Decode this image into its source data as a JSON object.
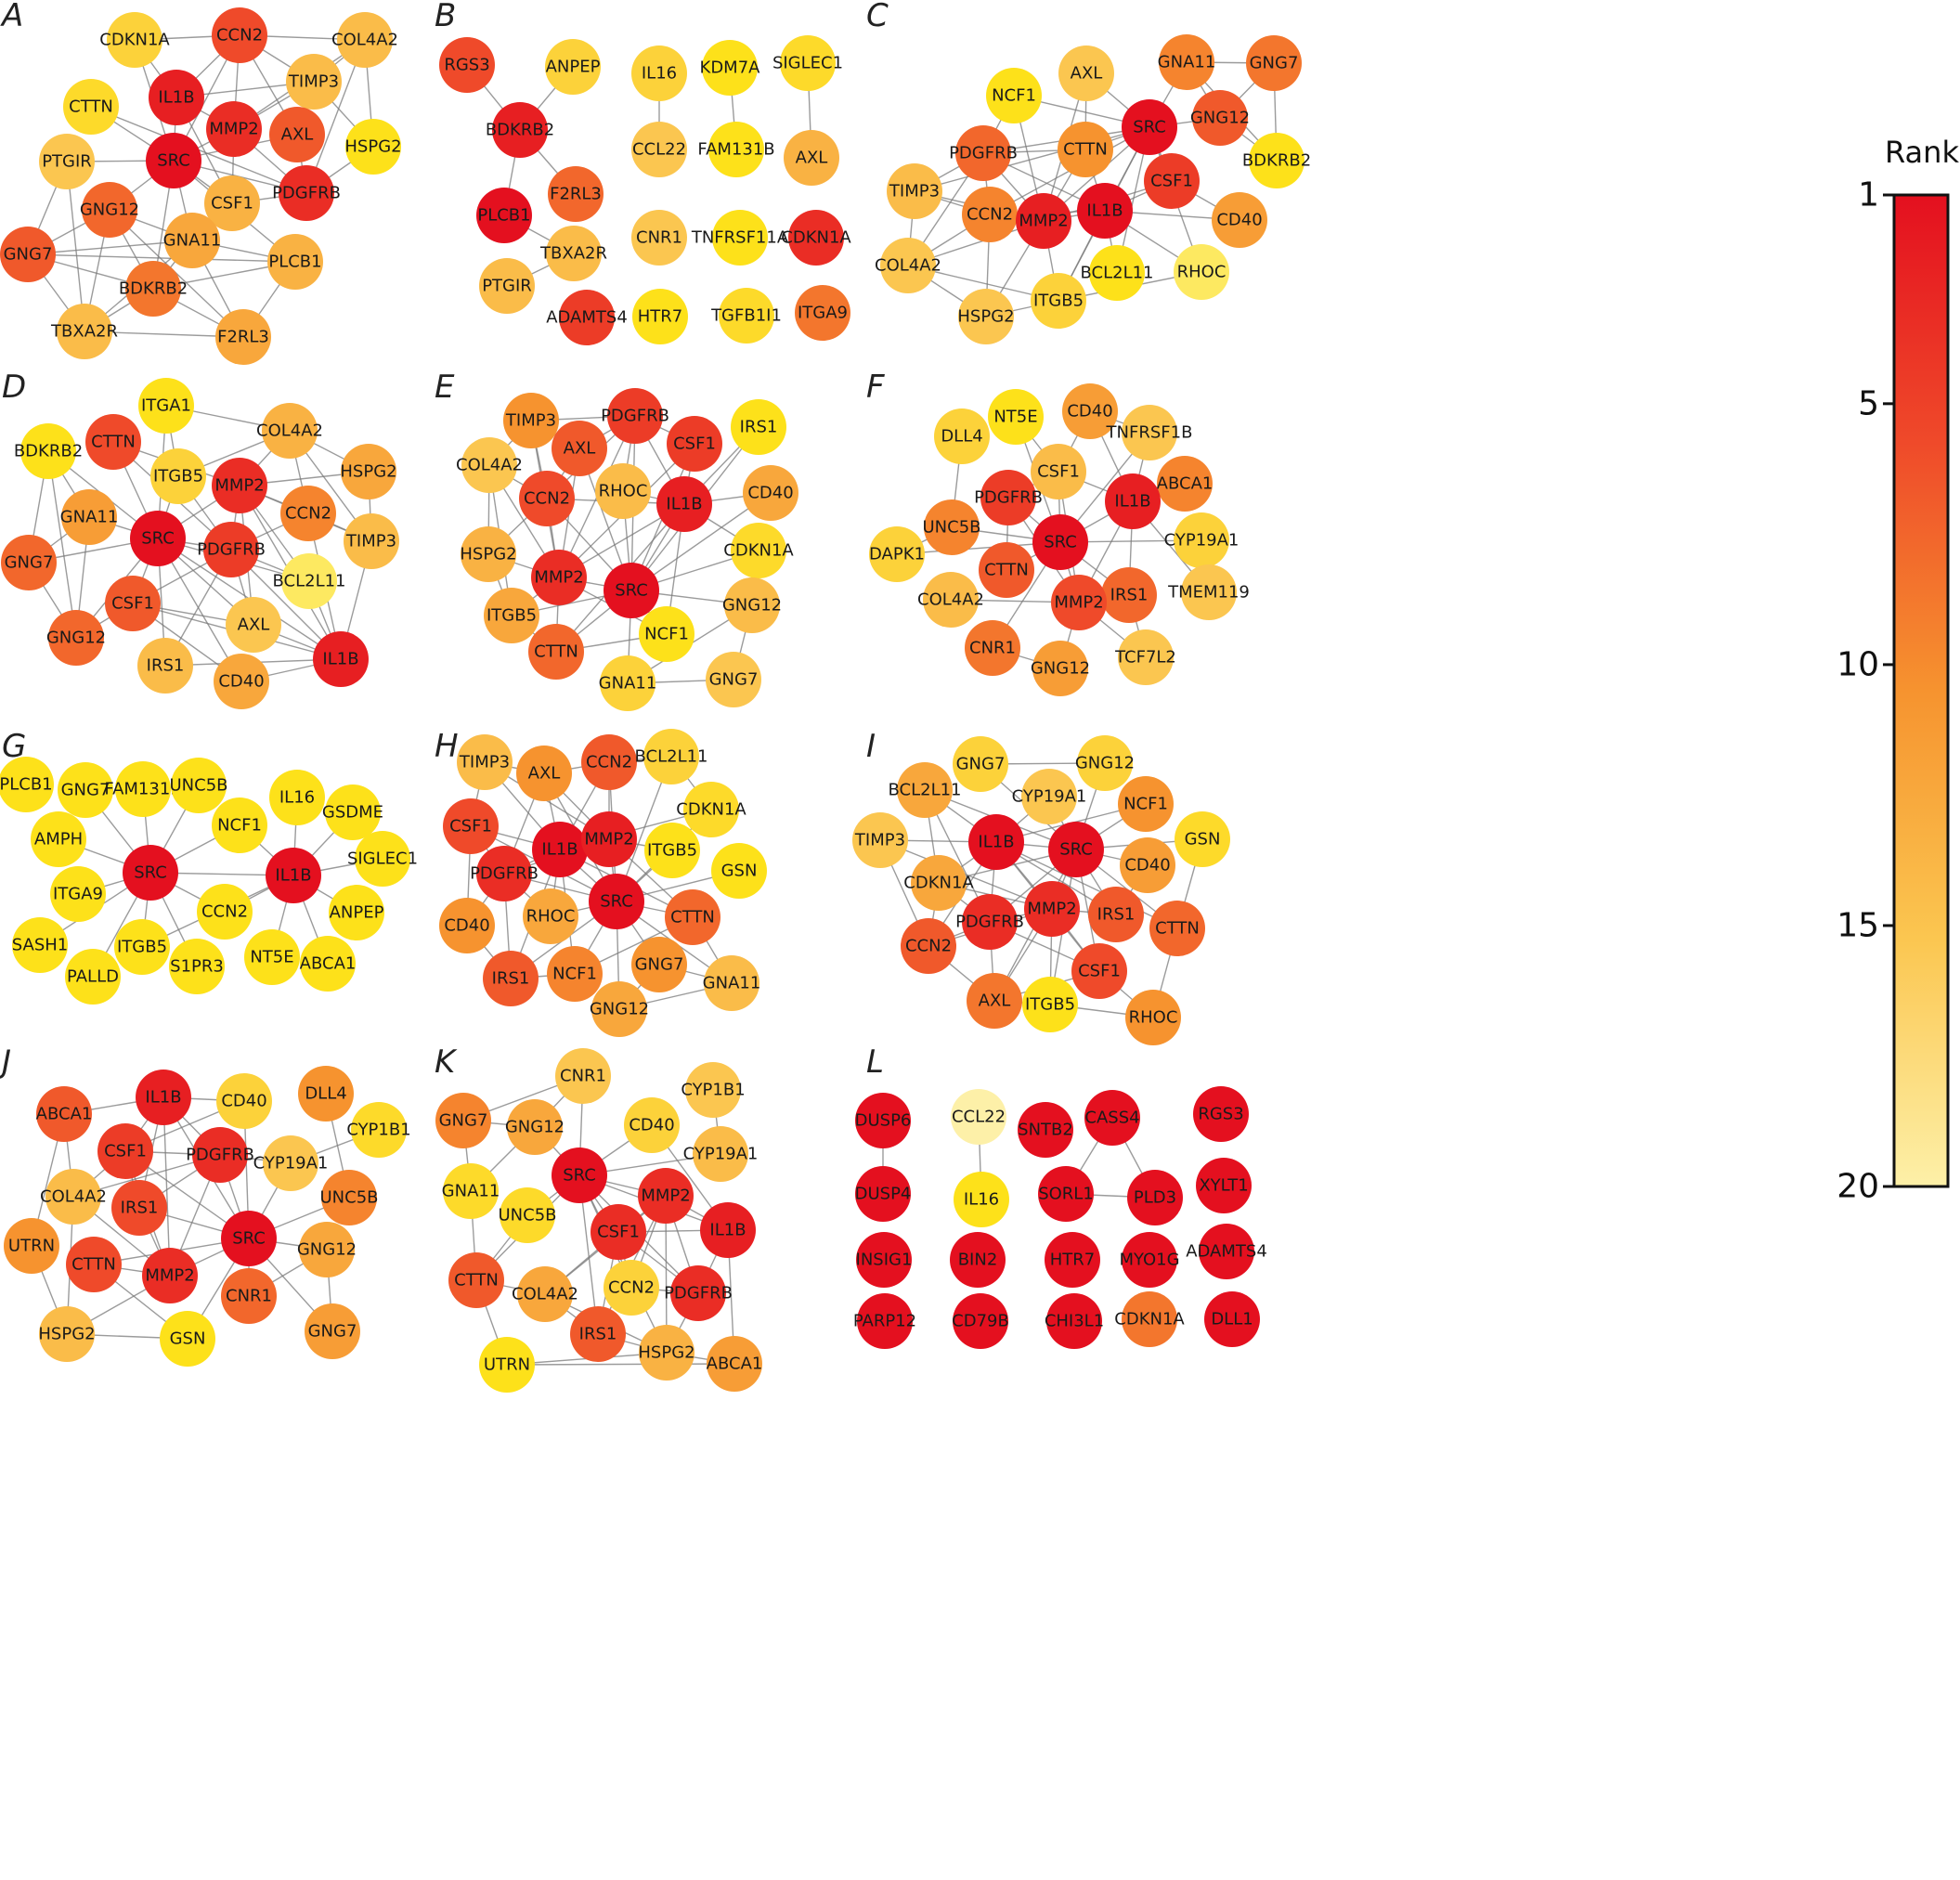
{
  "legend": {
    "title": "Rank",
    "ticks": [
      1,
      5,
      10,
      15,
      20
    ],
    "colors": [
      "#e8101c",
      "#f0522c",
      "#f6a032",
      "#fbe272",
      "#fdf0a8"
    ]
  },
  "panels": [
    {
      "label": "A",
      "nodes": [
        {
          "id": "CDKN1A",
          "rank": 16
        },
        {
          "id": "CCN2",
          "rank": 5
        },
        {
          "id": "COL4A2",
          "rank": 14
        },
        {
          "id": "IL1B",
          "rank": 2
        },
        {
          "id": "TIMP3",
          "rank": 14
        },
        {
          "id": "CTTN",
          "rank": 17
        },
        {
          "id": "MMP2",
          "rank": 3
        },
        {
          "id": "AXL",
          "rank": 6
        },
        {
          "id": "HSPG2",
          "rank": 18
        },
        {
          "id": "PTGIR",
          "rank": 15
        },
        {
          "id": "SRC",
          "rank": 1
        },
        {
          "id": "CSF1",
          "rank": 13
        },
        {
          "id": "PDGFRB",
          "rank": 3
        },
        {
          "id": "GNG12",
          "rank": 7
        },
        {
          "id": "GNA11",
          "rank": 12
        },
        {
          "id": "GNG7",
          "rank": 6
        },
        {
          "id": "PLCB1",
          "rank": 13
        },
        {
          "id": "BDKRB2",
          "rank": 8
        },
        {
          "id": "TBXA2R",
          "rank": 14
        },
        {
          "id": "F2RL3",
          "rank": 12
        }
      ]
    },
    {
      "label": "B",
      "nodes": [
        {
          "id": "RGS3",
          "rank": 5
        },
        {
          "id": "ANPEP",
          "rank": 16
        },
        {
          "id": "IL16",
          "rank": 16
        },
        {
          "id": "KDM7A",
          "rank": 18
        },
        {
          "id": "SIGLEC1",
          "rank": 17
        },
        {
          "id": "BDKRB2",
          "rank": 2
        },
        {
          "id": "CCL22",
          "rank": 15
        },
        {
          "id": "FAM131B",
          "rank": 18
        },
        {
          "id": "AXL",
          "rank": 13
        },
        {
          "id": "F2RL3",
          "rank": 7
        },
        {
          "id": "PLCB1",
          "rank": 1
        },
        {
          "id": "TBXA2R",
          "rank": 14
        },
        {
          "id": "CNR1",
          "rank": 15
        },
        {
          "id": "TNFRSF11A",
          "rank": 18
        },
        {
          "id": "CDKN1A",
          "rank": 3
        },
        {
          "id": "PTGIR",
          "rank": 14
        },
        {
          "id": "ADAMTS4",
          "rank": 4
        },
        {
          "id": "HTR7",
          "rank": 18
        },
        {
          "id": "TGFB1I1",
          "rank": 17
        },
        {
          "id": "ITGA9",
          "rank": 8
        }
      ]
    },
    {
      "label": "C",
      "nodes": [
        {
          "id": "GNA11",
          "rank": 9
        },
        {
          "id": "GNG7",
          "rank": 8
        },
        {
          "id": "AXL",
          "rank": 15
        },
        {
          "id": "NCF1",
          "rank": 18
        },
        {
          "id": "SRC",
          "rank": 1
        },
        {
          "id": "GNG12",
          "rank": 6
        },
        {
          "id": "BDKRB2",
          "rank": 18
        },
        {
          "id": "CTTN",
          "rank": 10
        },
        {
          "id": "PDGFRB",
          "rank": 7
        },
        {
          "id": "CSF1",
          "rank": 4
        },
        {
          "id": "TIMP3",
          "rank": 14
        },
        {
          "id": "CCN2",
          "rank": 9
        },
        {
          "id": "MMP2",
          "rank": 2
        },
        {
          "id": "IL1B",
          "rank": 1
        },
        {
          "id": "CD40",
          "rank": 11
        },
        {
          "id": "COL4A2",
          "rank": 15
        },
        {
          "id": "BCL2L11",
          "rank": 18
        },
        {
          "id": "RHOC",
          "rank": 19
        },
        {
          "id": "ITGB5",
          "rank": 16
        },
        {
          "id": "HSPG2",
          "rank": 15
        }
      ]
    },
    {
      "label": "D",
      "nodes": [
        {
          "id": "ITGA1",
          "rank": 18
        },
        {
          "id": "COL4A2",
          "rank": 13
        },
        {
          "id": "BDKRB2",
          "rank": 18
        },
        {
          "id": "CTTN",
          "rank": 5
        },
        {
          "id": "ITGB5",
          "rank": 16
        },
        {
          "id": "MMP2",
          "rank": 3
        },
        {
          "id": "HSPG2",
          "rank": 12
        },
        {
          "id": "GNA11",
          "rank": 11
        },
        {
          "id": "CCN2",
          "rank": 9
        },
        {
          "id": "SRC",
          "rank": 1
        },
        {
          "id": "GNG7",
          "rank": 7
        },
        {
          "id": "PDGFRB",
          "rank": 4
        },
        {
          "id": "TIMP3",
          "rank": 14
        },
        {
          "id": "BCL2L11",
          "rank": 19
        },
        {
          "id": "CSF1",
          "rank": 6
        },
        {
          "id": "AXL",
          "rank": 15
        },
        {
          "id": "GNG12",
          "rank": 7
        },
        {
          "id": "IRS1",
          "rank": 14
        },
        {
          "id": "IL1B",
          "rank": 2
        },
        {
          "id": "CD40",
          "rank": 12
        }
      ]
    },
    {
      "label": "E",
      "nodes": [
        {
          "id": "TIMP3",
          "rank": 10
        },
        {
          "id": "PDGFRB",
          "rank": 4
        },
        {
          "id": "IRS1",
          "rank": 18
        },
        {
          "id": "AXL",
          "rank": 6
        },
        {
          "id": "CSF1",
          "rank": 4
        },
        {
          "id": "COL4A2",
          "rank": 15
        },
        {
          "id": "CCN2",
          "rank": 5
        },
        {
          "id": "RHOC",
          "rank": 14
        },
        {
          "id": "IL1B",
          "rank": 2
        },
        {
          "id": "CD40",
          "rank": 12
        },
        {
          "id": "CDKN1A",
          "rank": 17
        },
        {
          "id": "HSPG2",
          "rank": 13
        },
        {
          "id": "MMP2",
          "rank": 3
        },
        {
          "id": "SRC",
          "rank": 1
        },
        {
          "id": "GNG12",
          "rank": 14
        },
        {
          "id": "ITGB5",
          "rank": 12
        },
        {
          "id": "NCF1",
          "rank": 18
        },
        {
          "id": "CTTN",
          "rank": 7
        },
        {
          "id": "GNA11",
          "rank": 16
        },
        {
          "id": "GNG7",
          "rank": 15
        }
      ]
    },
    {
      "label": "F",
      "nodes": [
        {
          "id": "NT5E",
          "rank": 18
        },
        {
          "id": "CD40",
          "rank": 11
        },
        {
          "id": "DLL4",
          "rank": 16
        },
        {
          "id": "TNFRSF1B",
          "rank": 15
        },
        {
          "id": "CSF1",
          "rank": 14
        },
        {
          "id": "ABCA1",
          "rank": 9
        },
        {
          "id": "PDGFRB",
          "rank": 4
        },
        {
          "id": "IL1B",
          "rank": 2
        },
        {
          "id": "UNC5B",
          "rank": 9
        },
        {
          "id": "SRC",
          "rank": 1
        },
        {
          "id": "CYP19A1",
          "rank": 16
        },
        {
          "id": "DAPK1",
          "rank": 16
        },
        {
          "id": "CTTN",
          "rank": 6
        },
        {
          "id": "IRS1",
          "rank": 7
        },
        {
          "id": "TMEM119",
          "rank": 15
        },
        {
          "id": "COL4A2",
          "rank": 14
        },
        {
          "id": "MMP2",
          "rank": 5
        },
        {
          "id": "CNR1",
          "rank": 8
        },
        {
          "id": "GNG12",
          "rank": 11
        },
        {
          "id": "TCF7L2",
          "rank": 15
        }
      ]
    },
    {
      "label": "G",
      "nodes": [
        {
          "id": "PLCB1",
          "rank": 18
        },
        {
          "id": "GNG7",
          "rank": 18
        },
        {
          "id": "FAM131B",
          "rank": 18
        },
        {
          "id": "UNC5B",
          "rank": 18
        },
        {
          "id": "IL16",
          "rank": 18
        },
        {
          "id": "GSDME",
          "rank": 18
        },
        {
          "id": "NCF1",
          "rank": 18
        },
        {
          "id": "AMPH",
          "rank": 18
        },
        {
          "id": "SIGLEC1",
          "rank": 18
        },
        {
          "id": "SRC",
          "rank": 1
        },
        {
          "id": "IL1B",
          "rank": 1
        },
        {
          "id": "ITGA9",
          "rank": 18
        },
        {
          "id": "CCN2",
          "rank": 18
        },
        {
          "id": "ANPEP",
          "rank": 18
        },
        {
          "id": "SASH1",
          "rank": 18
        },
        {
          "id": "ITGB5",
          "rank": 18
        },
        {
          "id": "S1PR3",
          "rank": 18
        },
        {
          "id": "NT5E",
          "rank": 18
        },
        {
          "id": "ABCA1",
          "rank": 18
        },
        {
          "id": "PALLD",
          "rank": 18
        }
      ]
    },
    {
      "label": "H",
      "nodes": [
        {
          "id": "TIMP3",
          "rank": 14
        },
        {
          "id": "AXL",
          "rank": 10
        },
        {
          "id": "CCN2",
          "rank": 6
        },
        {
          "id": "BCL2L11",
          "rank": 16
        },
        {
          "id": "CDKN1A",
          "rank": 17
        },
        {
          "id": "CSF1",
          "rank": 5
        },
        {
          "id": "IL1B",
          "rank": 1
        },
        {
          "id": "MMP2",
          "rank": 2
        },
        {
          "id": "ITGB5",
          "rank": 18
        },
        {
          "id": "GSN",
          "rank": 18
        },
        {
          "id": "PDGFRB",
          "rank": 3
        },
        {
          "id": "SRC",
          "rank": 1
        },
        {
          "id": "CD40",
          "rank": 10
        },
        {
          "id": "RHOC",
          "rank": 12
        },
        {
          "id": "CTTN",
          "rank": 7
        },
        {
          "id": "IRS1",
          "rank": 6
        },
        {
          "id": "NCF1",
          "rank": 9
        },
        {
          "id": "GNG7",
          "rank": 10
        },
        {
          "id": "GNA11",
          "rank": 14
        },
        {
          "id": "GNG12",
          "rank": 12
        }
      ]
    },
    {
      "label": "I",
      "nodes": [
        {
          "id": "GNG7",
          "rank": 16
        },
        {
          "id": "GNG12",
          "rank": 16
        },
        {
          "id": "BCL2L11",
          "rank": 12
        },
        {
          "id": "CYP19A1",
          "rank": 15
        },
        {
          "id": "NCF1",
          "rank": 10
        },
        {
          "id": "TIMP3",
          "rank": 15
        },
        {
          "id": "IL1B",
          "rank": 1
        },
        {
          "id": "SRC",
          "rank": 1
        },
        {
          "id": "GSN",
          "rank": 17
        },
        {
          "id": "CDKN1A",
          "rank": 12
        },
        {
          "id": "CD40",
          "rank": 11
        },
        {
          "id": "PDGFRB",
          "rank": 3
        },
        {
          "id": "MMP2",
          "rank": 3
        },
        {
          "id": "IRS1",
          "rank": 6
        },
        {
          "id": "CTTN",
          "rank": 7
        },
        {
          "id": "CCN2",
          "rank": 6
        },
        {
          "id": "CSF1",
          "rank": 5
        },
        {
          "id": "AXL",
          "rank": 8
        },
        {
          "id": "ITGB5",
          "rank": 18
        },
        {
          "id": "RHOC",
          "rank": 10
        }
      ]
    },
    {
      "label": "J",
      "nodes": [
        {
          "id": "IL1B",
          "rank": 2
        },
        {
          "id": "CD40",
          "rank": 16
        },
        {
          "id": "DLL4",
          "rank": 10
        },
        {
          "id": "ABCA1",
          "rank": 6
        },
        {
          "id": "CYP1B1",
          "rank": 17
        },
        {
          "id": "CSF1",
          "rank": 4
        },
        {
          "id": "PDGFRB",
          "rank": 3
        },
        {
          "id": "CYP19A1",
          "rank": 15
        },
        {
          "id": "COL4A2",
          "rank": 14
        },
        {
          "id": "UNC5B",
          "rank": 9
        },
        {
          "id": "IRS1",
          "rank": 5
        },
        {
          "id": "SRC",
          "rank": 1
        },
        {
          "id": "UTRN",
          "rank": 10
        },
        {
          "id": "GNG12",
          "rank": 12
        },
        {
          "id": "CTTN",
          "rank": 5
        },
        {
          "id": "MMP2",
          "rank": 3
        },
        {
          "id": "CNR1",
          "rank": 7
        },
        {
          "id": "HSPG2",
          "rank": 14
        },
        {
          "id": "GSN",
          "rank": 18
        },
        {
          "id": "GNG7",
          "rank": 11
        }
      ]
    },
    {
      "label": "K",
      "nodes": [
        {
          "id": "CNR1",
          "rank": 15
        },
        {
          "id": "CYP1B1",
          "rank": 15
        },
        {
          "id": "GNG7",
          "rank": 9
        },
        {
          "id": "GNG12",
          "rank": 12
        },
        {
          "id": "CD40",
          "rank": 16
        },
        {
          "id": "CYP19A1",
          "rank": 14
        },
        {
          "id": "SRC",
          "rank": 1
        },
        {
          "id": "GNA11",
          "rank": 17
        },
        {
          "id": "MMP2",
          "rank": 3
        },
        {
          "id": "UNC5B",
          "rank": 17
        },
        {
          "id": "IL1B",
          "rank": 2
        },
        {
          "id": "CSF1",
          "rank": 3
        },
        {
          "id": "CTTN",
          "rank": 6
        },
        {
          "id": "CCN2",
          "rank": 16
        },
        {
          "id": "COL4A2",
          "rank": 12
        },
        {
          "id": "PDGFRB",
          "rank": 3
        },
        {
          "id": "IRS1",
          "rank": 6
        },
        {
          "id": "HSPG2",
          "rank": 13
        },
        {
          "id": "UTRN",
          "rank": 18
        },
        {
          "id": "ABCA1",
          "rank": 11
        }
      ]
    },
    {
      "label": "L",
      "nodes": [
        {
          "id": "DUSP6",
          "rank": 1
        },
        {
          "id": "CCL22",
          "rank": 20
        },
        {
          "id": "SNTB2",
          "rank": 1
        },
        {
          "id": "CASS4",
          "rank": 1
        },
        {
          "id": "RGS3",
          "rank": 1
        },
        {
          "id": "DUSP4",
          "rank": 1
        },
        {
          "id": "IL16",
          "rank": 18
        },
        {
          "id": "SORL1",
          "rank": 1
        },
        {
          "id": "PLD3",
          "rank": 1
        },
        {
          "id": "XYLT1",
          "rank": 1
        },
        {
          "id": "INSIG1",
          "rank": 1
        },
        {
          "id": "BIN2",
          "rank": 1
        },
        {
          "id": "HTR7",
          "rank": 1
        },
        {
          "id": "MYO1G",
          "rank": 1
        },
        {
          "id": "ADAMTS4",
          "rank": 1
        },
        {
          "id": "PARP12",
          "rank": 1
        },
        {
          "id": "CD79B",
          "rank": 1
        },
        {
          "id": "CHI3L1",
          "rank": 1
        },
        {
          "id": "CDKN1A",
          "rank": 8
        },
        {
          "id": "DLL1",
          "rank": 1
        }
      ]
    }
  ]
}
